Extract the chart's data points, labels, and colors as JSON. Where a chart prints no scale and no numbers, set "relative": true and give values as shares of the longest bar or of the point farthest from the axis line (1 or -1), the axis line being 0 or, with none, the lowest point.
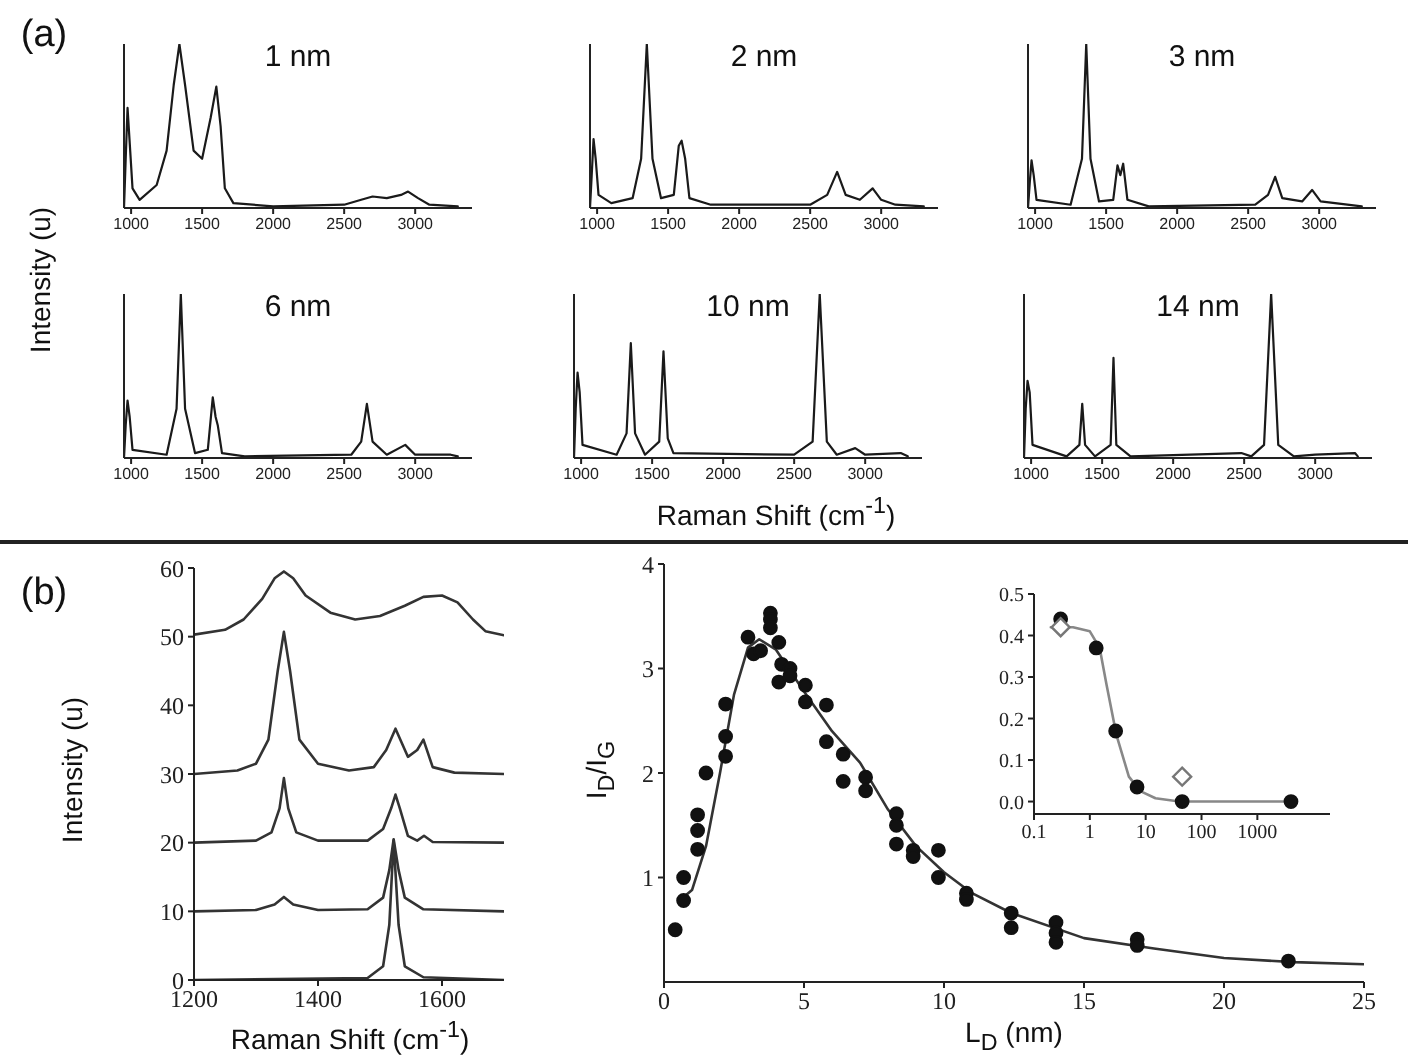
{
  "chart_data": [
    {
      "type": "line",
      "title": "1 nm",
      "annotations": [
        "(a)"
      ],
      "relative": true,
      "color": "#1a1a1a",
      "marker": "none",
      "xlim": [
        950,
        3400
      ],
      "xticks": [
        1000,
        1500,
        2000,
        2500,
        3000
      ],
      "x": [
        950,
        962,
        975,
        990,
        1010,
        1060,
        1180,
        1250,
        1300,
        1340,
        1380,
        1440,
        1500,
        1560,
        1600,
        1630,
        1660,
        1720,
        2000,
        2500,
        2620,
        2700,
        2800,
        2900,
        2950,
        3020,
        3100,
        3300
      ],
      "values": [
        0,
        0.3,
        0.61,
        0.4,
        0.12,
        0.05,
        0.14,
        0.35,
        0.75,
        1,
        0.75,
        0.35,
        0.3,
        0.55,
        0.74,
        0.5,
        0.12,
        0.03,
        0.01,
        0.02,
        0.05,
        0.07,
        0.06,
        0.08,
        0.1,
        0.06,
        0.02,
        0.01
      ]
    },
    {
      "type": "line",
      "title": "2 nm",
      "relative": true,
      "color": "#1a1a1a",
      "marker": "none",
      "xlim": [
        950,
        3400
      ],
      "xticks": [
        1000,
        1500,
        2000,
        2500,
        3000
      ],
      "x": [
        950,
        962,
        975,
        990,
        1010,
        1100,
        1250,
        1310,
        1350,
        1390,
        1450,
        1540,
        1575,
        1595,
        1620,
        1650,
        1800,
        2500,
        2620,
        2690,
        2750,
        2850,
        2940,
        3000,
        3100,
        3300
      ],
      "values": [
        0,
        0.2,
        0.42,
        0.3,
        0.08,
        0.03,
        0.06,
        0.3,
        1,
        0.3,
        0.06,
        0.08,
        0.38,
        0.41,
        0.3,
        0.06,
        0.02,
        0.02,
        0.08,
        0.22,
        0.08,
        0.05,
        0.12,
        0.05,
        0.02,
        0.01
      ]
    },
    {
      "type": "line",
      "title": "3 nm",
      "relative": true,
      "color": "#1a1a1a",
      "marker": "none",
      "xlim": [
        950,
        3400
      ],
      "xticks": [
        1000,
        1500,
        2000,
        2500,
        3000
      ],
      "x": [
        950,
        962,
        975,
        990,
        1010,
        1250,
        1330,
        1360,
        1390,
        1450,
        1550,
        1580,
        1600,
        1620,
        1650,
        1800,
        2550,
        2640,
        2690,
        2740,
        2880,
        2950,
        3010,
        3300
      ],
      "values": [
        0,
        0.15,
        0.29,
        0.2,
        0.05,
        0.02,
        0.3,
        1,
        0.3,
        0.04,
        0.05,
        0.26,
        0.2,
        0.27,
        0.05,
        0.01,
        0.02,
        0.08,
        0.19,
        0.06,
        0.04,
        0.11,
        0.04,
        0.01
      ]
    },
    {
      "type": "line",
      "title": "6 nm",
      "ylabel": "Intensity (u)",
      "relative": true,
      "color": "#1a1a1a",
      "marker": "none",
      "xlim": [
        950,
        3400
      ],
      "xticks": [
        1000,
        1500,
        2000,
        2500,
        3000
      ],
      "x": [
        950,
        962,
        975,
        990,
        1010,
        1250,
        1320,
        1350,
        1380,
        1450,
        1540,
        1575,
        1595,
        1610,
        1640,
        1800,
        2550,
        2620,
        2660,
        2700,
        2800,
        2930,
        3000,
        3250,
        3300
      ],
      "values": [
        0,
        0.2,
        0.35,
        0.25,
        0.05,
        0.02,
        0.3,
        1,
        0.3,
        0.03,
        0.05,
        0.37,
        0.25,
        0.2,
        0.03,
        0.01,
        0.02,
        0.1,
        0.33,
        0.1,
        0.02,
        0.08,
        0.02,
        0.02,
        0.01
      ]
    },
    {
      "type": "line",
      "title": "10 nm",
      "xlabel": "Raman Shift (cm$^{-1}$)",
      "relative": true,
      "color": "#1a1a1a",
      "marker": "none",
      "xlim": [
        950,
        3400
      ],
      "xticks": [
        1000,
        1500,
        2000,
        2500,
        3000
      ],
      "x": [
        950,
        962,
        975,
        990,
        1010,
        1250,
        1320,
        1350,
        1380,
        1450,
        1550,
        1580,
        1610,
        1650,
        2500,
        2630,
        2680,
        2730,
        2800,
        2930,
        3000,
        3250,
        3300
      ],
      "values": [
        0,
        0.3,
        0.52,
        0.4,
        0.08,
        0.02,
        0.15,
        0.7,
        0.15,
        0.02,
        0.1,
        0.65,
        0.12,
        0.03,
        0.02,
        0.1,
        1,
        0.1,
        0.02,
        0.06,
        0.02,
        0.03,
        0.01
      ]
    },
    {
      "type": "line",
      "title": "14 nm",
      "relative": true,
      "color": "#1a1a1a",
      "marker": "none",
      "xlim": [
        950,
        3400
      ],
      "xticks": [
        1000,
        1500,
        2000,
        2500,
        3000
      ],
      "x": [
        950,
        962,
        975,
        990,
        1010,
        1250,
        1340,
        1360,
        1380,
        1450,
        1560,
        1580,
        1600,
        1700,
        2480,
        2550,
        2640,
        2690,
        2740,
        2850,
        3000,
        3280,
        3300
      ],
      "values": [
        0,
        0.3,
        0.47,
        0.4,
        0.08,
        0.01,
        0.08,
        0.33,
        0.08,
        0.01,
        0.08,
        0.61,
        0.08,
        0.01,
        0.03,
        0.01,
        0.08,
        1,
        0.08,
        0.01,
        0.02,
        0.03,
        0.01
      ]
    },
    {
      "type": "line",
      "annotations": [
        "(b)"
      ],
      "xlabel": "Raman Shift (cm$^{-1}$)",
      "ylabel": "Intensity (u)",
      "marker": "none",
      "xlim": [
        1200,
        1700
      ],
      "xticks": [
        1200,
        1400,
        1600
      ],
      "ylim": [
        0,
        60
      ],
      "yticks": [
        0,
        10,
        20,
        30,
        40,
        50,
        60
      ],
      "series": [
        {
          "color": "#333333",
          "x": [
            1200,
            1480,
            1505,
            1515,
            1522,
            1530,
            1540,
            1570,
            1700
          ],
          "values": [
            0,
            0.3,
            2,
            8,
            20.3,
            8,
            2,
            0.4,
            0
          ]
        },
        {
          "color": "#333333",
          "x": [
            1200,
            1300,
            1330,
            1345,
            1360,
            1400,
            1480,
            1505,
            1515,
            1522,
            1530,
            1540,
            1570,
            1700
          ],
          "values": [
            10,
            10.2,
            11,
            12.1,
            11,
            10.2,
            10.3,
            12,
            16,
            20.5,
            16,
            12,
            10.3,
            10
          ]
        },
        {
          "color": "#333333",
          "x": [
            1200,
            1300,
            1325,
            1338,
            1345,
            1352,
            1365,
            1400,
            1480,
            1505,
            1518,
            1525,
            1532,
            1545,
            1560,
            1571,
            1585,
            1700
          ],
          "values": [
            20,
            20.3,
            21.5,
            25,
            29.4,
            25,
            21.5,
            20.3,
            20.3,
            22,
            25,
            27,
            25,
            21,
            20.3,
            21,
            20.1,
            20
          ]
        },
        {
          "color": "#333333",
          "x": [
            1200,
            1270,
            1300,
            1320,
            1335,
            1345,
            1355,
            1370,
            1400,
            1450,
            1490,
            1510,
            1525,
            1545,
            1560,
            1570,
            1585,
            1620,
            1700
          ],
          "values": [
            30,
            30.5,
            31.5,
            35,
            45,
            50.7,
            45,
            35,
            31.5,
            30.5,
            31,
            33.5,
            36.6,
            32.5,
            33.5,
            35,
            31,
            30.2,
            30
          ]
        },
        {
          "color": "#333333",
          "x": [
            1200,
            1250,
            1280,
            1310,
            1330,
            1345,
            1360,
            1380,
            1420,
            1460,
            1500,
            1540,
            1570,
            1600,
            1625,
            1650,
            1670,
            1700
          ],
          "values": [
            50.3,
            51,
            52.5,
            55.5,
            58.5,
            59.5,
            58.5,
            56,
            53.5,
            52.5,
            53,
            54.5,
            55.8,
            56,
            55,
            52.5,
            50.8,
            50.2
          ]
        }
      ]
    },
    {
      "type": "scatter",
      "xlabel": "L$_{D}$ (nm)",
      "ylabel": "I$_{D}$/I$_{G}$",
      "xlim": [
        0,
        25
      ],
      "xticks": [
        0,
        5,
        10,
        15,
        20,
        25
      ],
      "ylim": [
        0,
        4
      ],
      "yticks": [
        1,
        2,
        3,
        4
      ],
      "series": [
        {
          "marker": "circle",
          "color": "#111111",
          "x": [
            0.4,
            0.7,
            0.7,
            1.2,
            1.2,
            1.2,
            1.5,
            2.2,
            2.2,
            2.2,
            3.0,
            3.2,
            3.45,
            3.8,
            3.8,
            3.8,
            4.1,
            4.1,
            4.2,
            4.5,
            4.5,
            5.05,
            5.05,
            5.8,
            5.8,
            6.4,
            6.4,
            7.2,
            7.2,
            8.3,
            8.3,
            8.3,
            8.9,
            8.9,
            9.8,
            9.8,
            10.8,
            10.8,
            12.4,
            12.4,
            14.0,
            14.0,
            14.0,
            16.9,
            16.9,
            22.3
          ],
          "values": [
            0.5,
            1.0,
            0.78,
            1.6,
            1.45,
            1.27,
            2.0,
            2.16,
            2.35,
            2.66,
            3.3,
            3.14,
            3.17,
            3.53,
            3.47,
            3.39,
            3.25,
            2.87,
            3.04,
            3.0,
            2.93,
            2.84,
            2.68,
            2.65,
            2.3,
            2.18,
            1.92,
            1.96,
            1.83,
            1.61,
            1.5,
            1.32,
            1.26,
            1.2,
            1.26,
            1.0,
            0.85,
            0.79,
            0.66,
            0.52,
            0.57,
            0.47,
            0.38,
            0.41,
            0.35,
            0.2
          ]
        },
        {
          "type": "line",
          "marker": "none",
          "color": "#333333",
          "x": [
            0.6,
            1,
            1.5,
            2,
            2.5,
            3,
            3.4,
            4,
            5,
            6,
            7,
            8,
            9,
            10,
            11,
            12.4,
            15,
            17.5,
            20,
            22.5,
            25
          ],
          "values": [
            0.79,
            0.88,
            1.3,
            2.0,
            2.75,
            3.2,
            3.28,
            3.18,
            2.78,
            2.4,
            2.1,
            1.65,
            1.3,
            1.05,
            0.85,
            0.66,
            0.42,
            0.32,
            0.23,
            0.19,
            0.17
          ]
        }
      ]
    },
    {
      "type": "scatter",
      "log": "x",
      "xlim": [
        0.1,
        20000
      ],
      "xticks": [
        0.1,
        1,
        10,
        100,
        1000
      ],
      "ylim": [
        -0.03,
        0.5
      ],
      "yticks": [
        {
          "value": 0,
          "label": "0.0"
        },
        0.1,
        0.2,
        0.3,
        0.4,
        0.5
      ],
      "series": [
        {
          "type": "line",
          "marker": "none",
          "color": "#888888",
          "x": [
            0.2,
            0.5,
            1,
            1.5,
            2,
            3,
            5,
            8,
            15,
            40,
            4000
          ],
          "values": [
            0.42,
            0.42,
            0.41,
            0.37,
            0.28,
            0.16,
            0.06,
            0.025,
            0.008,
            0,
            0
          ]
        },
        {
          "marker": "circle",
          "color": "#111111",
          "x": [
            0.3,
            1.3,
            2.9,
            7,
            45,
            4000
          ],
          "values": [
            0.44,
            0.37,
            0.17,
            0.035,
            0,
            0
          ]
        },
        {
          "marker": "diamond",
          "color": "#777777",
          "x": [
            0.3,
            45
          ],
          "values": [
            0.42,
            0.06
          ]
        }
      ]
    }
  ]
}
